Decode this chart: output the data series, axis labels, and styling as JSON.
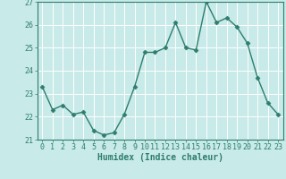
{
  "x": [
    0,
    1,
    2,
    3,
    4,
    5,
    6,
    7,
    8,
    9,
    10,
    11,
    12,
    13,
    14,
    15,
    16,
    17,
    18,
    19,
    20,
    21,
    22,
    23
  ],
  "y": [
    23.3,
    22.3,
    22.5,
    22.1,
    22.2,
    21.4,
    21.2,
    21.3,
    22.1,
    23.3,
    24.8,
    24.8,
    25.0,
    26.1,
    25.0,
    24.9,
    27.0,
    26.1,
    26.3,
    25.9,
    25.2,
    23.7,
    22.6,
    22.1
  ],
  "line_color": "#2e7d6e",
  "marker": "D",
  "marker_size": 2.5,
  "bg_color": "#c8eae8",
  "grid_color": "#ffffff",
  "xlabel": "Humidex (Indice chaleur)",
  "xlabel_color": "#2e7d6e",
  "tick_color": "#2e7d6e",
  "axis_color": "#2e7d6e",
  "ylim": [
    21,
    27
  ],
  "xlim_min": -0.5,
  "xlim_max": 23.5,
  "yticks": [
    21,
    22,
    23,
    24,
    25,
    26,
    27
  ],
  "xticks": [
    0,
    1,
    2,
    3,
    4,
    5,
    6,
    7,
    8,
    9,
    10,
    11,
    12,
    13,
    14,
    15,
    16,
    17,
    18,
    19,
    20,
    21,
    22,
    23
  ],
  "label_fontsize": 7,
  "tick_fontsize": 6,
  "linewidth": 1.0
}
